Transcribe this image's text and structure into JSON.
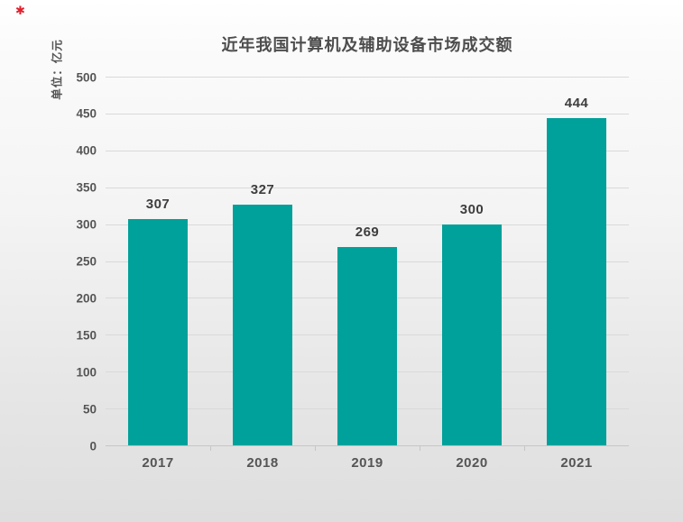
{
  "page": {
    "red_mark_glyph": "✱"
  },
  "chart_data": {
    "type": "bar",
    "title": "近年我国计算机及辅助设备市场成交额",
    "unit_label": "单位：亿元",
    "categories": [
      "2017",
      "2018",
      "2019",
      "2020",
      "2021"
    ],
    "values": [
      307,
      327,
      269,
      300,
      444
    ],
    "xlabel": "",
    "ylabel": "单位：亿元",
    "ylim": [
      0,
      500
    ],
    "ytick_step": 50,
    "grid": true,
    "legend": "none",
    "bar_color": "#00A19A",
    "title_color": "#4d4d4d",
    "tick_label_color": "#555555",
    "value_label_color": "#3d3d3d",
    "grid_color": "#d9d9d9",
    "axis_color": "#c6c6c6",
    "background_top": "#ffffff",
    "background_bottom": "#dedede"
  }
}
